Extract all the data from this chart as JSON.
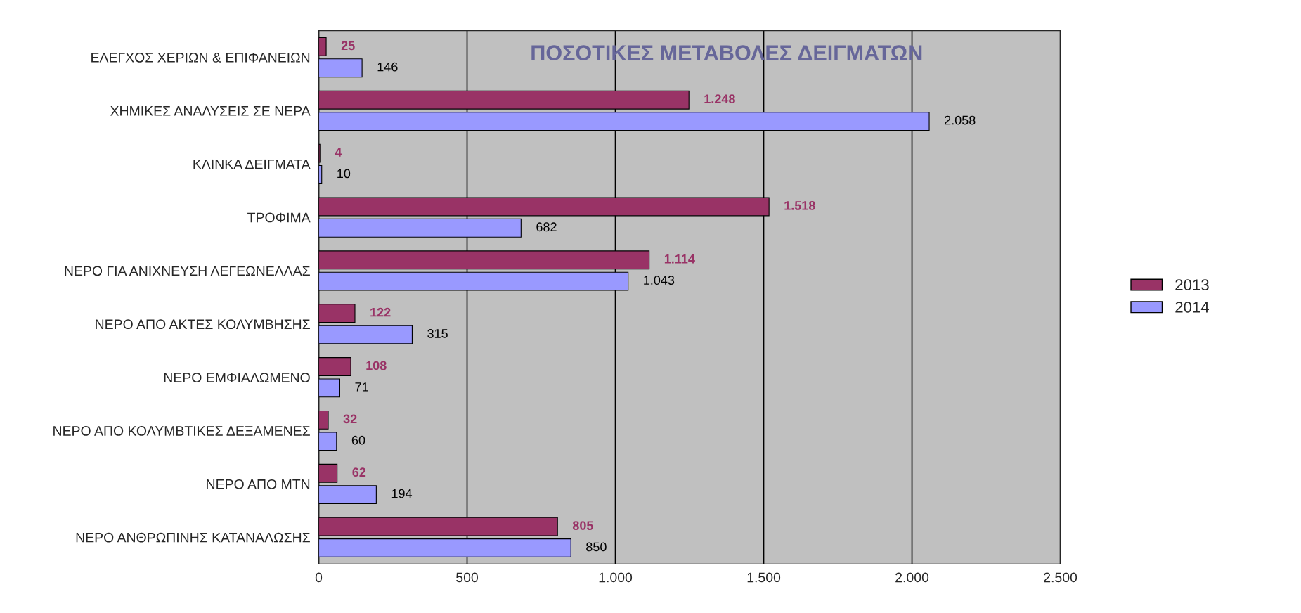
{
  "chart_data": {
    "type": "bar",
    "orientation": "horizontal",
    "title": "ΠΟΣΟΤΙΚΕΣ ΜΕΤΑΒΟΛΕΣ ΔΕΙΓΜΑΤΩΝ",
    "categories": [
      "ΕΛΕΓΧΟΣ ΧΕΡΙΩΝ & ΕΠΙΦΑΝΕΙΩΝ",
      "ΧΗΜΙΚΕΣ ΑΝΑΛΥΣΕΙΣ ΣΕ ΝΕΡΑ",
      "ΚΛΙΝΚΑ ΔΕΙΓΜΑΤΑ",
      "ΤΡΟΦΙΜΑ",
      "ΝΕΡΟ ΓΙΑ ΑΝΙΧΝΕΥΣΗ ΛΕΓΕΩΝΕΛΛΑΣ",
      "ΝΕΡΟ ΑΠΟ ΑΚΤΕΣ ΚΟΛΥΜΒΗΣΗΣ",
      "ΝΕΡΟ ΕΜΦΙΑΛΩΜΕΝΟ",
      "ΝΕΡΟ ΑΠΟ ΚΟΛΥΜΒΤΙΚΕΣ ΔΕΞΑΜΕΝΕΣ",
      "ΝΕΡΟ ΑΠΟ ΜΤΝ",
      "ΝΕΡΟ ΑΝΘΡΩΠΙΝΗΣ ΚΑΤΑΝΑΛΩΣΗΣ"
    ],
    "series": [
      {
        "name": "2013",
        "color": "#993366",
        "values": [
          25,
          1248,
          4,
          1518,
          1114,
          122,
          108,
          32,
          62,
          805
        ],
        "value_labels": [
          "25",
          "1.248",
          "4",
          "1.518",
          "1.114",
          "122",
          "108",
          "32",
          "62",
          "805"
        ]
      },
      {
        "name": "2014",
        "color": "#9999ff",
        "values": [
          146,
          2058,
          10,
          682,
          1043,
          315,
          71,
          60,
          194,
          850
        ],
        "value_labels": [
          "146",
          "2.058",
          "10",
          "682",
          "1.043",
          "315",
          "71",
          "60",
          "194",
          "850"
        ]
      }
    ],
    "xlim": [
      0,
      2500
    ],
    "xticks": [
      0,
      500,
      {
        "value": 1000,
        "label": "1.000"
      },
      {
        "value": 1500,
        "label": "1.500"
      },
      {
        "value": 2000,
        "label": "2.000"
      },
      {
        "value": 2500,
        "label": "2.500"
      }
    ],
    "grid": "x",
    "legend": "right"
  }
}
